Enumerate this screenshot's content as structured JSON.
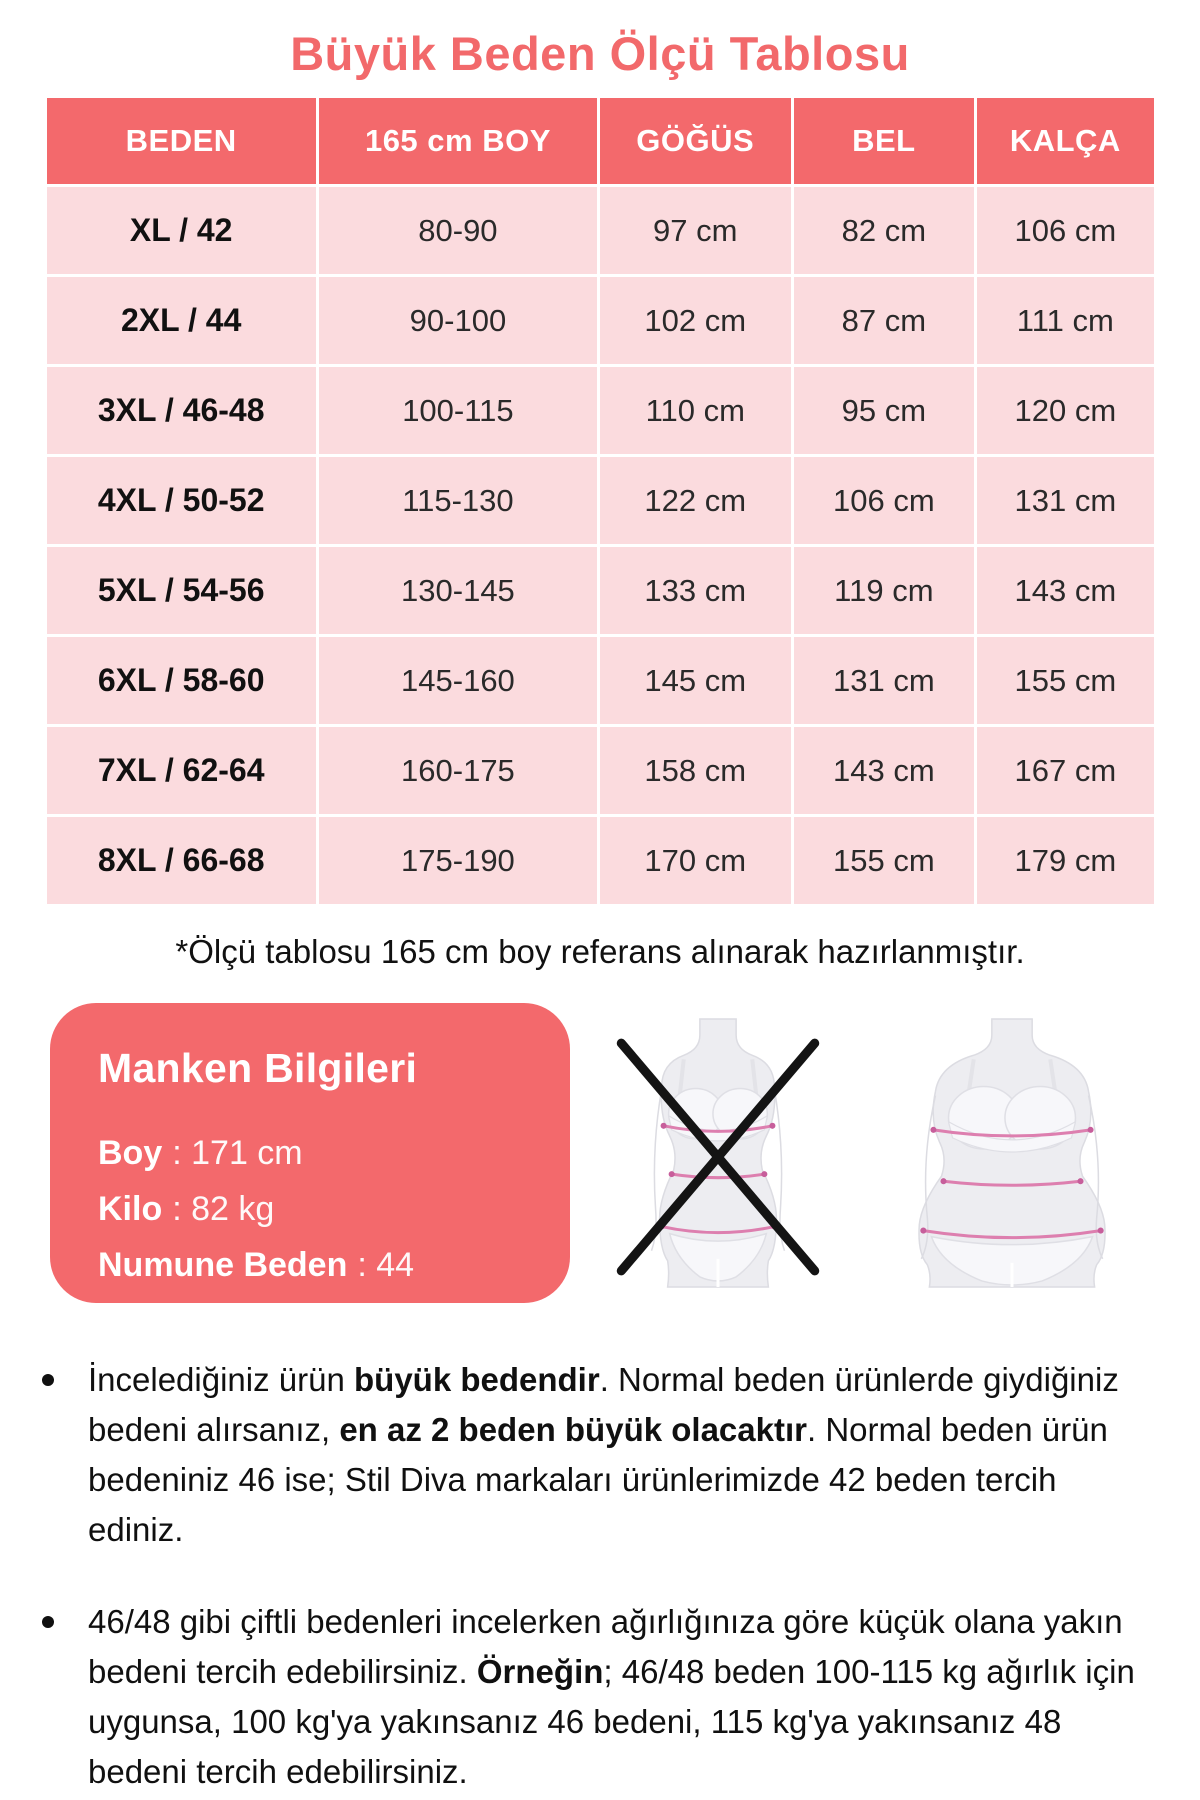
{
  "title": "Büyük Beden Ölçü Tablosu",
  "colors": {
    "accent_coral": "#F3696C",
    "cell_pink": "#FBDBDE",
    "measure_line_pink": "#DD7FAF",
    "text_dark": "#111111"
  },
  "size_table": {
    "columns": [
      "BEDEN",
      "165 cm BOY",
      "GÖĞÜS",
      "BEL",
      "KALÇA"
    ],
    "rows": [
      [
        "XL / 42",
        "80-90",
        "97 cm",
        "82 cm",
        "106 cm"
      ],
      [
        "2XL / 44",
        "90-100",
        "102 cm",
        "87 cm",
        "111 cm"
      ],
      [
        "3XL / 46-48",
        "100-115",
        "110 cm",
        "95 cm",
        "120 cm"
      ],
      [
        "4XL / 50-52",
        "115-130",
        "122 cm",
        "106 cm",
        "131 cm"
      ],
      [
        "5XL / 54-56",
        "130-145",
        "133 cm",
        "119 cm",
        "143 cm"
      ],
      [
        "6XL / 58-60",
        "145-160",
        "145 cm",
        "131 cm",
        "155 cm"
      ],
      [
        "7XL / 62-64",
        "160-175",
        "158 cm",
        "143 cm",
        "167 cm"
      ],
      [
        "8XL / 66-68",
        "175-190",
        "170 cm",
        "155 cm",
        "179 cm"
      ]
    ]
  },
  "footnote": "*Ölçü tablosu 165 cm boy referans alınarak hazırlanmıştır.",
  "model_info": {
    "title": "Manken Bilgileri",
    "fields": [
      {
        "label": "Boy",
        "value": ": 171 cm"
      },
      {
        "label": "Kilo",
        "value": ": 82 kg"
      },
      {
        "label": "Numune Beden",
        "value": ": 44"
      }
    ]
  },
  "figures": {
    "left_icon": "slim-body-crossed-out",
    "right_icon": "plus-size-body"
  },
  "notes": [
    {
      "s1": "İncelediğiniz ürün ",
      "b1": "büyük bedendir",
      "s2": ". Normal beden ürünlerde giydiğiniz bedeni alırsanız, ",
      "b2": "en az 2 beden büyük olacaktır",
      "s3": ". Normal beden ürün bedeniniz 46 ise; Stil Diva markaları ürünlerimizde 42 beden tercih ediniz."
    },
    {
      "s1": "46/48 gibi çiftli bedenleri incelerken ağırlığınıza göre küçük olana yakın bedeni tercih edebilirsiniz. ",
      "b1": "Örneğin",
      "s2": "; 46/48 beden 100-115 kg ağırlık için uygunsa, 100 kg'ya yakınsanız 46 bedeni, 115 kg'ya yakınsanız 48 bedeni tercih edebilirsiniz."
    }
  ]
}
